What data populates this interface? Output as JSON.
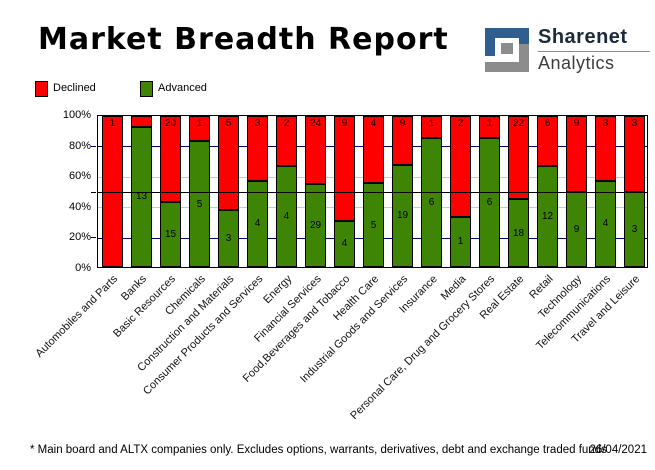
{
  "title": "Market Breadth Report",
  "logo": {
    "icon": "sharenet-logo-icon",
    "line1": "Sharenet",
    "line2": "Analytics",
    "blue": "#2f5f8f",
    "gray": "#8c8c8c"
  },
  "legend": [
    {
      "label": "Declined",
      "color": "#ff0000"
    },
    {
      "label": "Advanced",
      "color": "#3e8506"
    }
  ],
  "footer": {
    "note": "* Main board and ALTX companies only. Excludes options, warrants, derivatives, debt and exchange traded funds",
    "date": "26/04/2021"
  },
  "chart_data": {
    "type": "bar",
    "stacked": true,
    "percent_stacked": true,
    "categories": [
      "Automobiles and Parts",
      "Banks",
      "Basic Resources",
      "Chemicals",
      "Construction and Materials",
      "Consumer Products and Services",
      "Energy",
      "Financial Services",
      "Food,Beverages and Tobacco",
      "Health Care",
      "Industrial Goods and Services",
      "Insurance",
      "Media",
      "Personal Care, Drug and Grocery Stores",
      "Real Estate",
      "Retail",
      "Technology",
      "Telecommunications",
      "Travel and Leisure"
    ],
    "series": [
      {
        "name": "Declined",
        "color": "#ff0000",
        "values": [
          1,
          1,
          20,
          1,
          5,
          3,
          2,
          24,
          9,
          4,
          9,
          1,
          2,
          1,
          22,
          6,
          9,
          3,
          3
        ],
        "labels": [
          "1",
          "",
          "20",
          "1",
          "5",
          "3",
          "2",
          "24",
          "9",
          "4",
          "9",
          "1",
          "2",
          "1",
          "22",
          "6",
          "9",
          "3",
          "3"
        ]
      },
      {
        "name": "Advanced",
        "color": "#3e8506",
        "values": [
          0,
          13,
          15,
          5,
          3,
          4,
          4,
          29,
          4,
          5,
          19,
          6,
          1,
          6,
          18,
          12,
          9,
          4,
          3
        ],
        "labels": [
          "",
          "13",
          "15",
          "5",
          "3",
          "4",
          "4",
          "29",
          "4",
          "5",
          "19",
          "6",
          "1",
          "6",
          "18",
          "12",
          "9",
          "4",
          "3"
        ]
      }
    ],
    "y_ticks": [
      {
        "label": "100%",
        "value": 100
      },
      {
        "label": "80%",
        "value": 80
      },
      {
        "label": "60%",
        "value": 60
      },
      {
        "label": "40%",
        "value": 40
      },
      {
        "label": "20%",
        "value": 20
      },
      {
        "label": "0%",
        "value": 0
      }
    ],
    "ylim": [
      0,
      100
    ],
    "gridlines": [
      {
        "value": 80,
        "color": "#000080",
        "front": false,
        "tick": true
      },
      {
        "value": 60,
        "color": "#c8c8c8",
        "front": false,
        "tick": false
      },
      {
        "value": 50,
        "color": "#000000",
        "front": true,
        "tick": true
      },
      {
        "value": 40,
        "color": "#c8c8c8",
        "front": false,
        "tick": false
      },
      {
        "value": 20,
        "color": "#000080",
        "front": false,
        "tick": true
      }
    ],
    "legend_position": "top-left",
    "grid": true
  }
}
